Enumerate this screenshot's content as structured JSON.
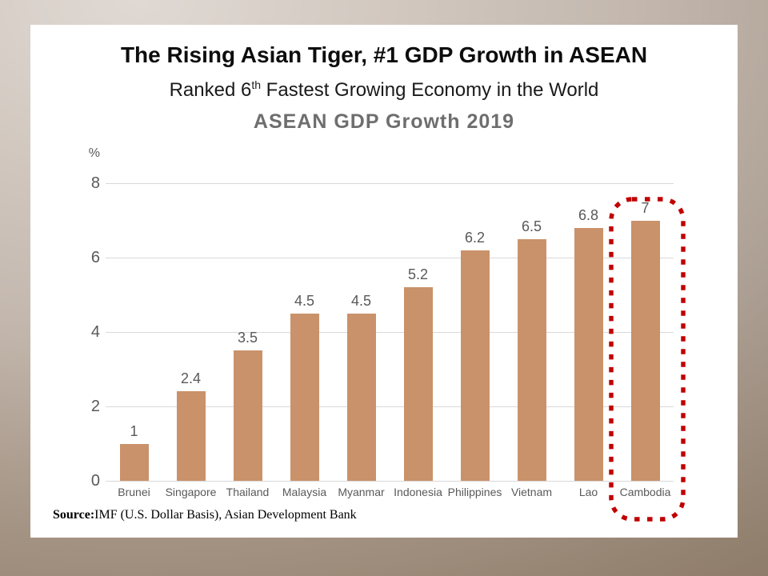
{
  "slide": {
    "title": "The Rising Asian Tiger, #1 GDP Growth in ASEAN",
    "subtitle_prefix": "Ranked 6",
    "subtitle_sup": "th",
    "subtitle_suffix": " Fastest Growing Economy in the World",
    "source_label": "Source:",
    "source_text": "IMF (U.S. Dollar Basis), Asian Development Bank"
  },
  "chart_data": {
    "type": "bar",
    "title": "ASEAN GDP Growth 2019",
    "unit_label": "%",
    "categories": [
      "Brunei",
      "Singapore",
      "Thailand",
      "Malaysia",
      "Myanmar",
      "Indonesia",
      "Philippines",
      "Vietnam",
      "Lao",
      "Cambodia"
    ],
    "values": [
      1,
      2.4,
      3.5,
      4.5,
      4.5,
      5.2,
      6.2,
      6.5,
      6.8,
      7
    ],
    "xlabel": "",
    "ylabel": "%",
    "ylim": [
      0,
      8
    ],
    "yticks": [
      0,
      2,
      4,
      6,
      8
    ],
    "grid": true,
    "legend": false,
    "bar_color": "#c9926b",
    "gridline_color": "#d9d9d9",
    "label_color": "#595959",
    "highlight_category": "Cambodia",
    "highlight_color": "#c00000",
    "highlight_style": "dotted-rounded-rectangle"
  }
}
